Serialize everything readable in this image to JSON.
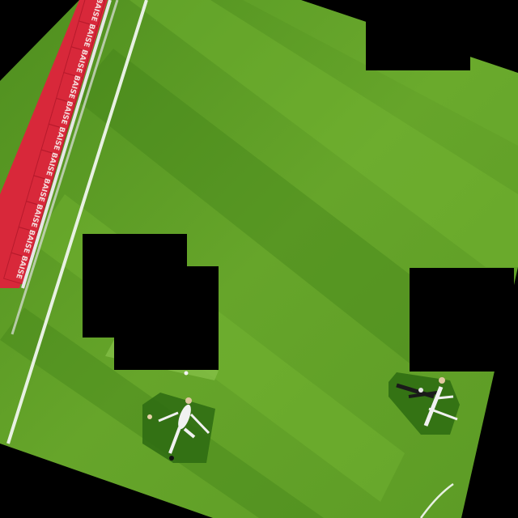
{
  "scene": {
    "description_tags": [
      "pitch-grass",
      "touchline",
      "ad-boards",
      "players",
      "redaction-boxes"
    ]
  },
  "ad_boards": {
    "board_text": "BAISE",
    "count": 11,
    "colors": {
      "fill": "#d8283a",
      "edge": "#b71a2c",
      "base": "#e6e6e6"
    }
  },
  "pitch": {
    "colors": {
      "light": "#6fae2e",
      "dark": "#5a9a24",
      "deep": "#3f7f17",
      "line": "#e8f1e3"
    }
  },
  "redactions": {
    "color": "#000000",
    "count": 4
  },
  "players": {
    "count": 5,
    "kit_white": "#f1f1f1",
    "kit_dark": "#1a1a1a"
  }
}
